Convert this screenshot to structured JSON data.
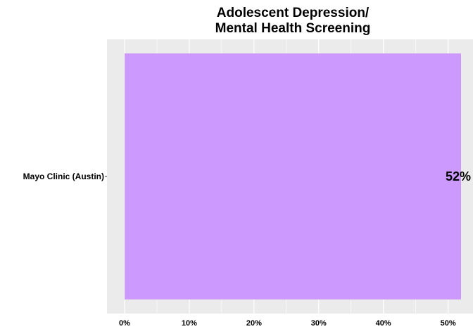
{
  "chart_data": {
    "type": "bar",
    "orientation": "horizontal",
    "title_lines": [
      "Adolescent Depression/",
      "Mental Health Screening"
    ],
    "categories": [
      "Mayo Clinic (Austin)"
    ],
    "values": [
      52
    ],
    "value_labels": [
      "52%"
    ],
    "xlim": [
      0,
      52
    ],
    "xticks": [
      0,
      10,
      20,
      30,
      40,
      50
    ],
    "xtick_labels": [
      "0%",
      "10%",
      "20%",
      "30%",
      "40%",
      "50%"
    ],
    "bar_color": "#cc99ff",
    "panel_color": "#ebebeb",
    "grid_color": "#ffffff",
    "grid": true
  }
}
